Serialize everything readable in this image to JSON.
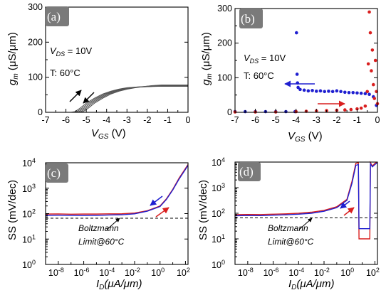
{
  "chart_data": [
    {
      "panel": "(a)",
      "type": "line",
      "xlabel_main": "V",
      "xlabel_sub": "GS",
      "xlabel_unit": " (V)",
      "ylabel_main": "g",
      "ylabel_sub": "m",
      "ylabel_unit": " (μS/μm)",
      "xlim": [
        -7,
        0
      ],
      "ylim": [
        0,
        300
      ],
      "xticks": [
        "-7",
        "-6",
        "-5",
        "-4",
        "-3",
        "-2",
        "-1",
        "0"
      ],
      "yticks": [
        "0",
        "100",
        "200",
        "300"
      ],
      "annotation_vds_main": "V",
      "annotation_vds_sub": "DS",
      "annotation_vds_val": " = 10V",
      "annotation_temp": "T: 60°C",
      "colors": {
        "curves": "#555555"
      },
      "series": [
        {
          "x": [
            -7,
            -5.75,
            -5.55,
            -5.3,
            -5.0,
            -4.6,
            -4.2,
            -3.8,
            -3.4,
            -3.0,
            -2.5,
            -2.0,
            -1.5,
            -1.0,
            -0.5,
            0
          ],
          "values": [
            0,
            0,
            2,
            12,
            26,
            40,
            52,
            60,
            66,
            70,
            72,
            73,
            74,
            74,
            74,
            74
          ]
        },
        {
          "x": [
            -7,
            -5.65,
            -5.45,
            -5.2,
            -4.9,
            -4.5,
            -4.1,
            -3.7,
            -3.3,
            -2.9,
            -2.5,
            -2.0,
            -1.5,
            -1.0,
            -0.5,
            0
          ],
          "values": [
            0,
            0,
            2,
            12,
            26,
            40,
            52,
            60,
            66,
            70,
            72,
            73,
            75,
            75,
            75,
            75
          ]
        },
        {
          "x": [
            -7,
            -5.55,
            -5.35,
            -5.1,
            -4.8,
            -4.4,
            -4.0,
            -3.6,
            -3.2,
            -2.8,
            -2.4,
            -2.0,
            -1.5,
            -1.0,
            -0.5,
            0
          ],
          "values": [
            0,
            0,
            2,
            12,
            26,
            40,
            52,
            60,
            66,
            70,
            72,
            74,
            76,
            76,
            76,
            76
          ]
        },
        {
          "x": [
            -7,
            -5.45,
            -5.25,
            -5.0,
            -4.7,
            -4.3,
            -3.9,
            -3.5,
            -3.1,
            -2.7,
            -2.3,
            -1.9,
            -1.4,
            -0.9,
            -0.5,
            0
          ],
          "values": [
            0,
            0,
            2,
            12,
            26,
            40,
            52,
            60,
            66,
            70,
            73,
            75,
            77,
            77,
            77,
            77
          ]
        },
        {
          "x": [
            -7,
            -5.35,
            -5.15,
            -4.9,
            -4.6,
            -4.2,
            -3.8,
            -3.4,
            -3.0,
            -2.6,
            -2.2,
            -1.8,
            -1.3,
            -0.8,
            -0.4,
            0
          ],
          "values": [
            0,
            0,
            2,
            12,
            26,
            40,
            52,
            60,
            66,
            70,
            73,
            76,
            78,
            78,
            78,
            78
          ]
        }
      ]
    },
    {
      "panel": "(b)",
      "type": "scatter",
      "xlabel_main": "V",
      "xlabel_sub": "GS",
      "xlabel_unit": " (V)",
      "ylabel_main": "g",
      "ylabel_sub": "m",
      "ylabel_unit": " (μS/μm)",
      "xlim": [
        -7,
        0
      ],
      "ylim": [
        0,
        300
      ],
      "xticks": [
        "-7",
        "-6",
        "-5",
        "-4",
        "-3",
        "-2",
        "-1",
        "0"
      ],
      "yticks": [
        "0",
        "100",
        "200",
        "300"
      ],
      "annotation_vds_main": "V",
      "annotation_vds_sub": "DS",
      "annotation_vds_val": " = 10V",
      "annotation_temp": "T: 60°C",
      "colors": {
        "blue": "#1f1fd0",
        "red": "#d91f1f"
      },
      "series": [
        {
          "color": "blue",
          "x": [
            -7,
            -6.5,
            -6,
            -5.5,
            -5,
            -4.5,
            -4.05,
            -3.98,
            -3.95,
            -3.93,
            -3.9,
            -3.8,
            -3.6,
            -3.4,
            -3.2,
            -3.0,
            -2.8,
            -2.6,
            -2.4,
            -2.2,
            -2.0,
            -1.8,
            -1.6,
            -1.4,
            -1.2,
            -1.0,
            -0.8,
            -0.6,
            -0.4,
            -0.2,
            -0.05
          ],
          "values": [
            2,
            2,
            2,
            2,
            2,
            2,
            2,
            230,
            110,
            85,
            72,
            66,
            64,
            62,
            63,
            61,
            62,
            60,
            61,
            60,
            62,
            60,
            58,
            57,
            57,
            56,
            55,
            54,
            52,
            45,
            20
          ]
        },
        {
          "color": "red",
          "x": [
            -7,
            -6,
            -5,
            -4,
            -3.5,
            -3,
            -2.5,
            -2,
            -1.6,
            -1.3,
            -1.0,
            -0.8,
            -0.6,
            -0.5,
            -0.45,
            -0.4,
            -0.35,
            -0.3,
            -0.25,
            -0.2,
            -0.15,
            -0.1,
            -0.05,
            0
          ],
          "values": [
            1,
            1,
            1,
            2,
            3,
            4,
            5,
            6,
            7,
            8,
            10,
            12,
            18,
            60,
            140,
            290,
            230,
            120,
            180,
            80,
            40,
            150,
            60,
            25
          ]
        }
      ]
    },
    {
      "panel": "(c)",
      "type": "line",
      "ylabel": "SS (mV/dec)",
      "xlabel_main": "I",
      "xlabel_sub": "D",
      "xlabel_unit": "(μA/μm)",
      "log_x": true,
      "log_y": true,
      "xlim_exp": [
        -9,
        2.2
      ],
      "ylim_exp": [
        0,
        4
      ],
      "xtick_exps": [
        "-8",
        "-6",
        "-4",
        "-2",
        "0",
        "2"
      ],
      "ytick_exps": [
        "0",
        "1",
        "2",
        "3",
        "4"
      ],
      "tick_base": "10",
      "boltzmann_limit": 66,
      "annotation_line1": "Boltzmann",
      "annotation_line2": "Limit@60°C",
      "colors": {
        "blue": "#1f1fd0",
        "red": "#d91f1f"
      },
      "series": [
        {
          "color": "red",
          "x_exp": [
            -9,
            -8,
            -7,
            -6,
            -5,
            -4,
            -3,
            -2,
            -1,
            0,
            0.5,
            1,
            1.5,
            2,
            2.2
          ],
          "values": [
            96,
            97,
            95,
            96,
            96,
            98,
            99,
            105,
            130,
            200,
            380,
            900,
            2500,
            6000,
            8500
          ]
        },
        {
          "color": "blue",
          "x_exp": [
            -9,
            -8,
            -7,
            -6,
            -5,
            -4,
            -3,
            -2,
            -1,
            0,
            0.5,
            1,
            1.5,
            2,
            2.2
          ],
          "values": [
            85,
            86,
            85,
            84,
            85,
            88,
            90,
            98,
            125,
            190,
            360,
            850,
            2300,
            5500,
            8000
          ]
        }
      ]
    },
    {
      "panel": "(d)",
      "type": "line",
      "ylabel": "SS (mV/dec)",
      "xlabel_main": "I",
      "xlabel_sub": "D",
      "xlabel_unit": "(μA/μm)",
      "log_x": true,
      "log_y": true,
      "xlim_exp": [
        -9,
        2.2
      ],
      "ylim_exp": [
        0,
        4
      ],
      "xtick_exps": [
        "-8",
        "-6",
        "-4",
        "-2",
        "0",
        "2"
      ],
      "ytick_exps": [
        "0",
        "1",
        "2",
        "3",
        "4"
      ],
      "tick_base": "10",
      "boltzmann_limit": 66,
      "annotation_line1": "Boltzmann",
      "annotation_line2": "Limit@60°C",
      "colors": {
        "blue": "#1f1fd0",
        "red": "#d91f1f"
      },
      "series": [
        {
          "color": "red",
          "x_exp": [
            -9,
            -8,
            -7,
            -6,
            -5,
            -4,
            -3,
            -2,
            -1,
            -0.2,
            0.2,
            0.5,
            0.7,
            0.75,
            1.6,
            1.65,
            1.8,
            2.0,
            2.2
          ],
          "values": [
            88,
            90,
            89,
            92,
            95,
            100,
            110,
            130,
            180,
            350,
            1800,
            9000,
            9500,
            10,
            10,
            9500,
            7000,
            9000,
            10000
          ]
        },
        {
          "color": "blue",
          "x_exp": [
            -9,
            -8,
            -7,
            -6,
            -5,
            -4,
            -3,
            -2,
            -1,
            -0.2,
            0.2,
            0.5,
            0.7,
            0.75,
            1.6,
            1.65,
            1.8,
            2.0,
            2.2
          ],
          "values": [
            80,
            82,
            81,
            84,
            87,
            92,
            100,
            120,
            165,
            320,
            1500,
            7500,
            8000,
            25,
            25,
            8500,
            6500,
            8000,
            9500
          ]
        }
      ]
    }
  ]
}
